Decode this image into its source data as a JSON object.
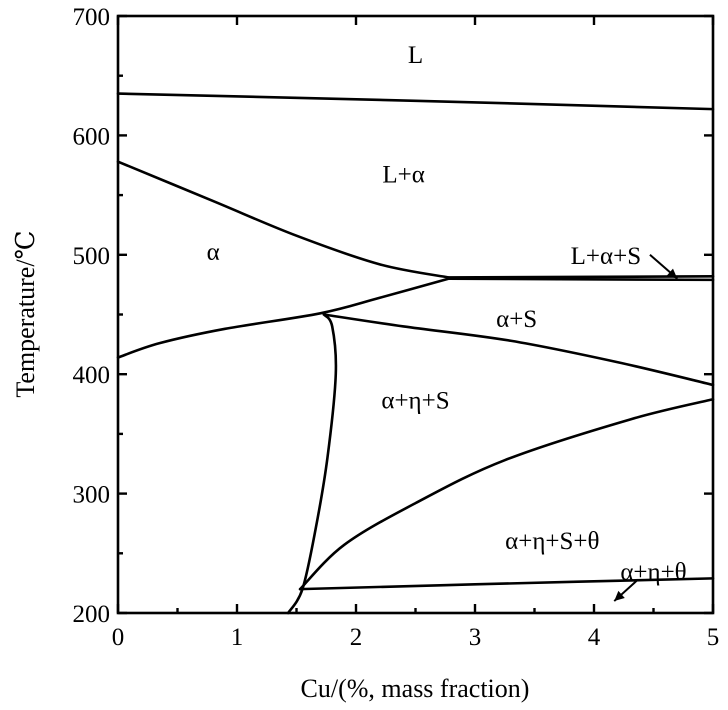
{
  "chart_data": {
    "type": "phase-diagram",
    "title": "",
    "xlabel": "Cu/(%, mass fraction)",
    "ylabel": "Temperature/℃",
    "xlim": [
      0,
      5
    ],
    "ylim": [
      200,
      700
    ],
    "x_ticks": [
      0,
      1,
      2,
      3,
      4,
      5
    ],
    "y_ticks": [
      200,
      300,
      400,
      500,
      600,
      700
    ],
    "grid": false,
    "boundaries": [
      {
        "name": "liquidus",
        "points": [
          [
            0,
            635
          ],
          [
            2.5,
            629
          ],
          [
            5,
            622
          ]
        ]
      },
      {
        "name": "alpha-liquid-solvus",
        "points": [
          [
            0,
            578
          ],
          [
            0.8,
            545
          ],
          [
            1.5,
            516
          ],
          [
            2.2,
            492
          ],
          [
            2.78,
            481
          ]
        ]
      },
      {
        "name": "eutectic-upper",
        "points": [
          [
            2.78,
            481
          ],
          [
            5,
            482
          ]
        ]
      },
      {
        "name": "eutectic-lower",
        "points": [
          [
            2.78,
            480
          ],
          [
            5,
            479
          ]
        ]
      },
      {
        "name": "alpha-solvus",
        "points": [
          [
            0,
            414
          ],
          [
            0.35,
            426
          ],
          [
            0.9,
            438
          ],
          [
            1.7,
            451
          ],
          [
            2.2,
            464
          ],
          [
            2.78,
            480
          ]
        ]
      },
      {
        "name": "alpha-S-boundary",
        "points": [
          [
            1.73,
            450
          ],
          [
            2.4,
            440
          ],
          [
            3.3,
            428
          ],
          [
            4.2,
            410
          ],
          [
            5,
            391
          ]
        ]
      },
      {
        "name": "alpha-eta-boundary",
        "points": [
          [
            1.73,
            450
          ],
          [
            1.8,
            440
          ],
          [
            1.83,
            400
          ],
          [
            1.76,
            330
          ],
          [
            1.66,
            270
          ],
          [
            1.55,
            220
          ],
          [
            1.43,
            200
          ]
        ]
      },
      {
        "name": "theta-solvus",
        "points": [
          [
            1.53,
            220
          ],
          [
            1.9,
            257
          ],
          [
            2.5,
            292
          ],
          [
            3.25,
            328
          ],
          [
            4.3,
            362
          ],
          [
            5,
            379
          ]
        ]
      },
      {
        "name": "lower-horizontal",
        "points": [
          [
            1.53,
            220
          ],
          [
            3,
            224
          ],
          [
            5,
            229
          ]
        ]
      }
    ],
    "annotations": [
      {
        "text": "L",
        "x": 2.5,
        "y": 668
      },
      {
        "text": "L+α",
        "x": 2.4,
        "y": 568
      },
      {
        "text": "α",
        "x": 0.8,
        "y": 503
      },
      {
        "text": "L+α+S",
        "x": 4.1,
        "y": 500
      },
      {
        "text": "α+S",
        "x": 3.35,
        "y": 447
      },
      {
        "text": "α+η+S",
        "x": 2.5,
        "y": 379
      },
      {
        "text": "α+η+S+θ",
        "x": 3.65,
        "y": 261
      },
      {
        "text": "α+η+θ",
        "x": 4.5,
        "y": 235
      }
    ],
    "arrows": [
      {
        "label": "L+α+S",
        "from": [
          4.47,
          500
        ],
        "to": [
          4.7,
          480
        ]
      },
      {
        "label": "α+η+θ",
        "from": [
          4.37,
          228
        ],
        "to": [
          4.17,
          210
        ]
      }
    ]
  }
}
